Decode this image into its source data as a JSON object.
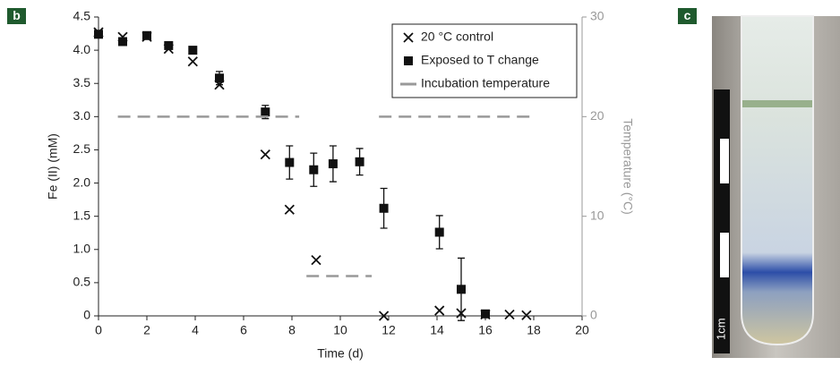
{
  "chart_data": {
    "type": "scatter",
    "panel_labels": [
      "b",
      "c"
    ],
    "xlabel": "Time (d)",
    "ylabel": "Fe (II) (mM)",
    "y2label": "Temperature (°C)",
    "scale_label": "1cm",
    "xlim": [
      0,
      20
    ],
    "xticks": [
      0,
      2,
      4,
      6,
      8,
      10,
      12,
      14,
      16,
      18,
      20
    ],
    "ylim": [
      0,
      4.5
    ],
    "yticks": [
      0,
      0.5,
      {
        "value": 1,
        "label": "1.0"
      },
      1.5,
      {
        "value": 2,
        "label": "2.0"
      },
      2.5,
      {
        "value": 3,
        "label": "3.0"
      },
      3.5,
      {
        "value": 4,
        "label": "4.0"
      },
      4.5
    ],
    "y2lim": [
      0,
      30
    ],
    "y2ticks": [
      0,
      10,
      20,
      30
    ],
    "legend": "upper right",
    "series": [
      {
        "name": "20 °C control",
        "marker": "x",
        "color": "#111111",
        "x": [
          0,
          1,
          2,
          2.9,
          3.9,
          5,
          6.9,
          7.9,
          9,
          11.8,
          14.1,
          15,
          16,
          17,
          17.7
        ],
        "values": [
          4.27,
          4.2,
          4.2,
          4.02,
          3.83,
          3.48,
          2.43,
          1.6,
          0.84,
          0,
          0.08,
          0.04,
          0.02,
          0.02,
          0.01
        ]
      },
      {
        "name": "Exposed to T change",
        "marker": "square",
        "color": "#111111",
        "x": [
          0,
          1,
          2,
          2.9,
          3.9,
          5,
          6.9,
          7.9,
          8.9,
          9.7,
          10.8,
          11.8,
          14.1,
          15,
          16
        ],
        "values": [
          4.24,
          4.13,
          4.22,
          4.07,
          4.0,
          3.58,
          3.07,
          2.31,
          2.2,
          2.29,
          2.32,
          1.62,
          1.26,
          0.4,
          0.03
        ],
        "errors": [
          0,
          0,
          0,
          0,
          0,
          0.1,
          0.1,
          0.25,
          0.25,
          0.27,
          0.2,
          0.3,
          0.25,
          0.47,
          0
        ]
      },
      {
        "name": "Incubation temperature",
        "marker": "dash",
        "color": "#999999",
        "axis": "y2",
        "x": [
          0.8,
          8.3,
          null,
          8.6,
          11.3,
          null,
          11.6,
          18
        ],
        "values": [
          20,
          20,
          null,
          4,
          4,
          null,
          20,
          20
        ]
      }
    ]
  }
}
